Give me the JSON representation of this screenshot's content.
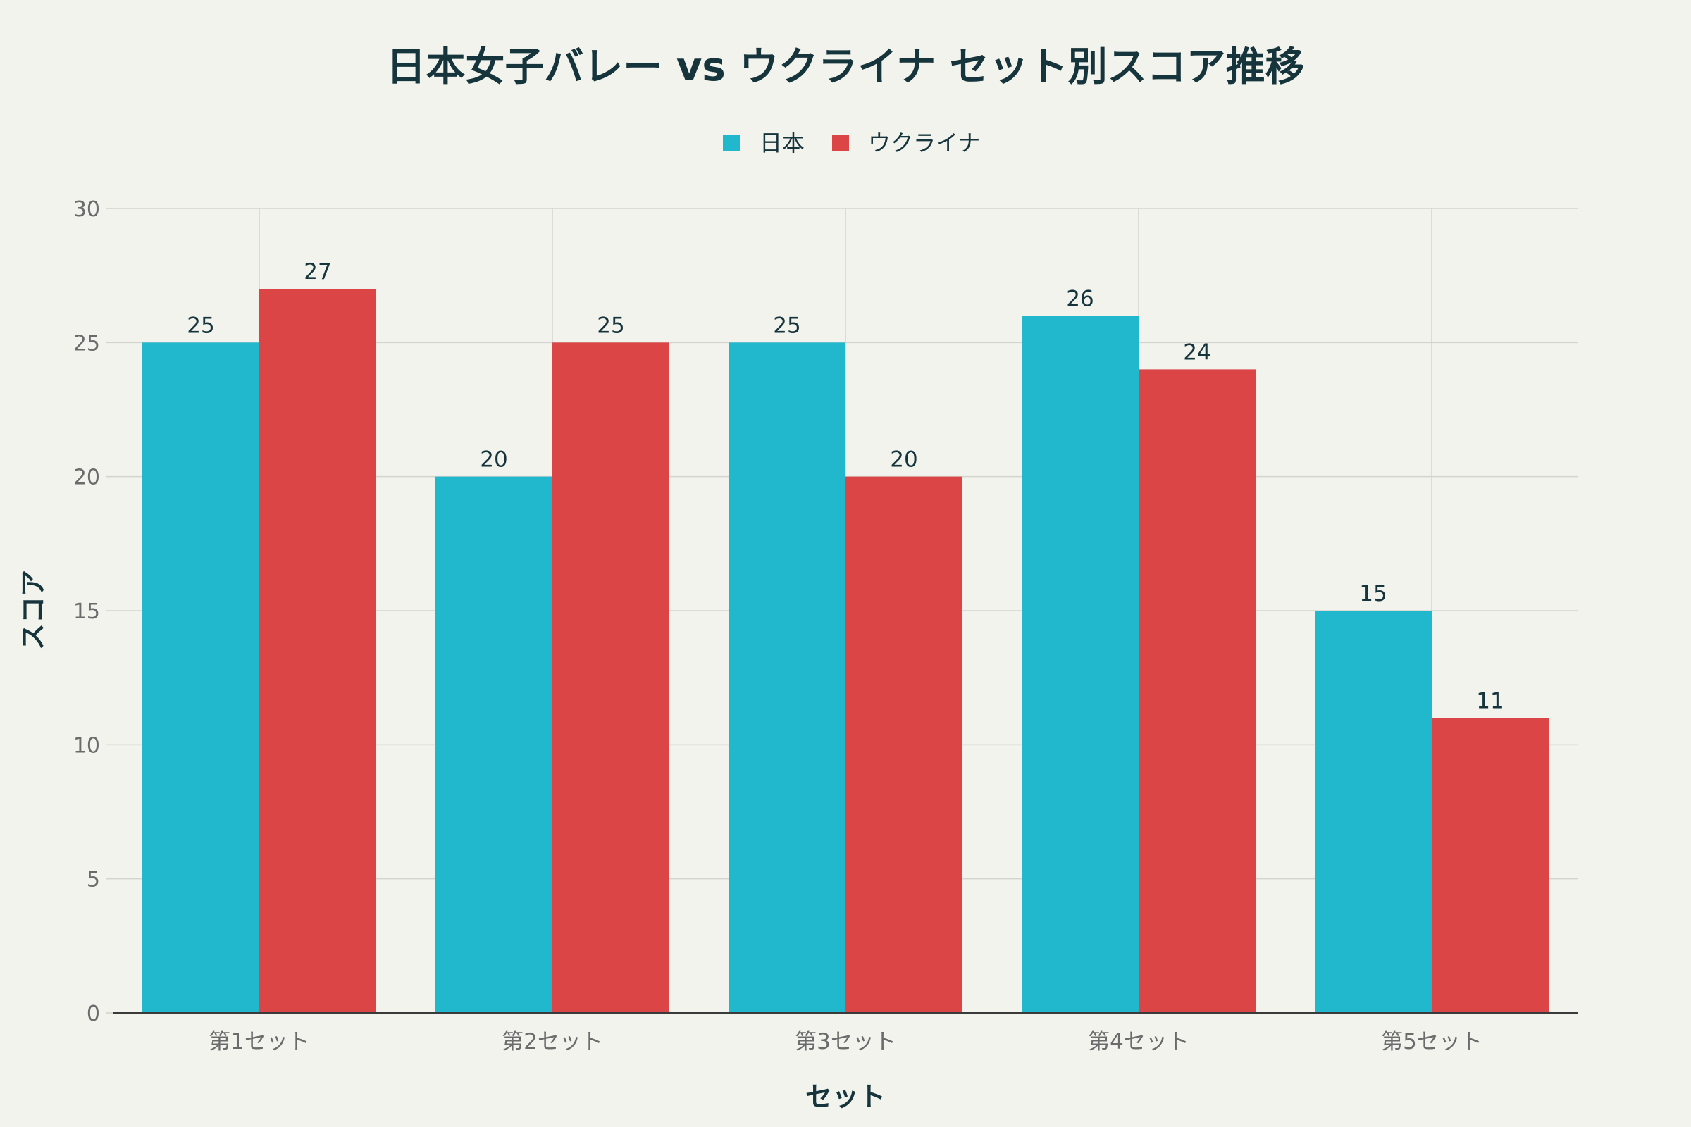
{
  "chart_data": {
    "type": "bar",
    "title": "日本女子バレー vs ウクライナ セット別スコア推移",
    "xlabel": "セット",
    "ylabel": "スコア",
    "categories": [
      "第1セット",
      "第2セット",
      "第3セット",
      "第4セット",
      "第5セット"
    ],
    "series": [
      {
        "name": "日本",
        "color": "#21b7cc",
        "values": [
          25,
          20,
          25,
          26,
          15
        ]
      },
      {
        "name": "ウクライナ",
        "color": "#db4546",
        "values": [
          27,
          25,
          20,
          24,
          11
        ]
      }
    ],
    "ylim": [
      0,
      30
    ],
    "yticks": [
      0,
      5,
      10,
      15,
      20,
      25,
      30
    ],
    "grid": true,
    "legend_position": "top-center",
    "data_labels": true
  },
  "colors": {
    "background": "#f3f3ee",
    "text_dark": "#16343b",
    "tick_text": "#6b6b6b",
    "grid": "#d3d3cf",
    "axis": "#3a3a3a"
  }
}
